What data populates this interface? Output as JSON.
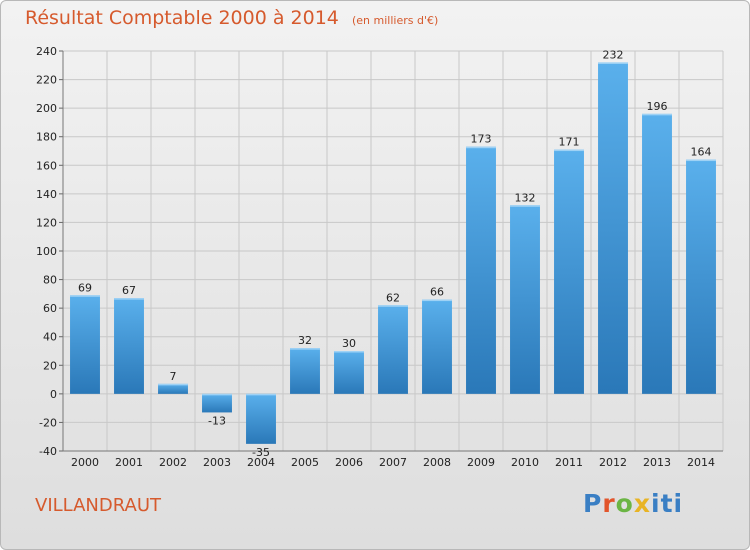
{
  "header": {
    "title": "Résultat Comptable 2000 à 2014",
    "subtitle": "(en milliers d'€)"
  },
  "footer": {
    "commune": "VILLANDRAUT",
    "logo_text": "Proxiti"
  },
  "colors": {
    "title": "#d65a2d",
    "bar_top": "#5ab0ec",
    "bar_bottom": "#2a78b8",
    "grid": "#c8c8c8"
  },
  "chart_data": {
    "type": "bar",
    "title": "Résultat Comptable 2000 à 2014",
    "subtitle": "(en milliers d'€)",
    "categories": [
      "2000",
      "2001",
      "2002",
      "2003",
      "2004",
      "2005",
      "2006",
      "2007",
      "2008",
      "2009",
      "2010",
      "2011",
      "2012",
      "2013",
      "2014"
    ],
    "values": [
      69,
      67,
      7,
      -13,
      -35,
      32,
      30,
      62,
      66,
      173,
      132,
      171,
      232,
      196,
      164
    ],
    "xlabel": "",
    "ylabel": "",
    "ylim": [
      -40,
      240
    ],
    "yticks": [
      -40,
      -20,
      0,
      20,
      40,
      60,
      80,
      100,
      120,
      140,
      160,
      180,
      200,
      220,
      240
    ],
    "grid": true,
    "legend": "none"
  }
}
